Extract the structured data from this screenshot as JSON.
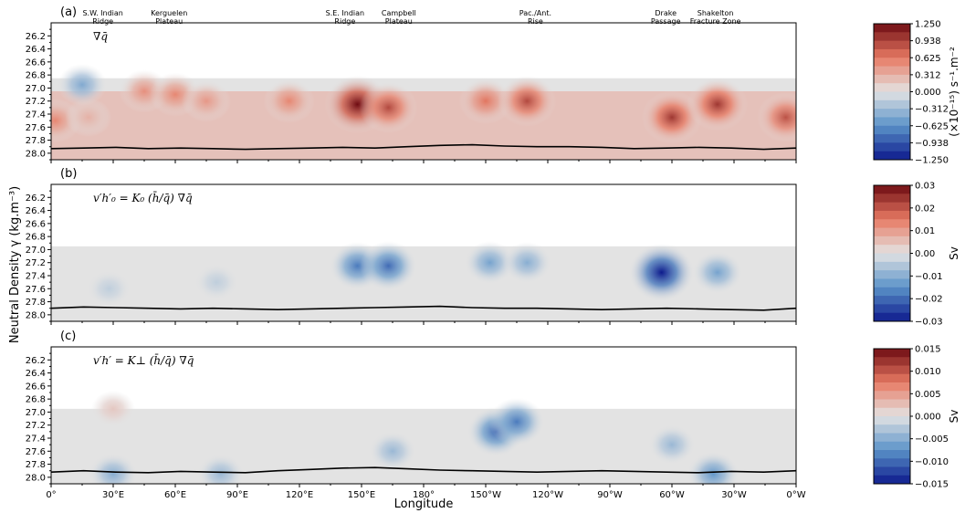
{
  "figure": {
    "xlabel": "Longitude",
    "ylabel": "Neutral Density γ (kg.m⁻³)",
    "colors": {
      "neg_max": "#0d1a8c",
      "neg_mid": "#5b93c9",
      "neutral": "#e3e3e3",
      "pos_mid": "#e77a63",
      "pos_max": "#6e0b12",
      "sea_floor_line": "#000000"
    },
    "ridges": [
      {
        "line1": "S.W. Indian",
        "line2": "Ridge",
        "lon": 25
      },
      {
        "line1": "Kerguelen",
        "line2": "Plateau",
        "lon": 57
      },
      {
        "line1": "S.E. Indian",
        "line2": "Ridge",
        "lon": 142
      },
      {
        "line1": "Campbell",
        "line2": "Plateau",
        "lon": 168
      },
      {
        "line1": "Pac./Ant.",
        "line2": "Rise",
        "lon": 234
      },
      {
        "line1": "Drake",
        "line2": "Passage",
        "lon": 297
      },
      {
        "line1": "Shakelton",
        "line2": "Fracture Zone",
        "lon": 321
      }
    ]
  },
  "chart_data": [
    {
      "type": "heatmap",
      "panel_label": "(a)",
      "formula": "∇q̄",
      "x_ticks": [
        "0°",
        "30°E",
        "60°E",
        "90°E",
        "120°E",
        "150°E",
        "180°",
        "150°W",
        "120°W",
        "90°W",
        "60°W",
        "30°W",
        "0°W"
      ],
      "xlim": [
        0,
        360
      ],
      "ylim": [
        26.0,
        28.1
      ],
      "y_ticks": [
        "26.2",
        "26.4",
        "26.6",
        "26.8",
        "27.0",
        "27.2",
        "27.4",
        "27.6",
        "27.8",
        "28.0"
      ],
      "colorbar": {
        "ticks": [
          "1.250",
          "0.938",
          "0.625",
          "0.312",
          "0.000",
          "−0.312",
          "−0.625",
          "−0.938",
          "−1.250"
        ],
        "range": [
          -1.25,
          1.25
        ],
        "label": "(×10⁻¹⁵) s⁻¹.m⁻²"
      },
      "features": [
        {
          "lon": 2,
          "gamma": 27.5,
          "value": 0.55
        },
        {
          "lon": 18,
          "gamma": 27.45,
          "value": 0.3
        },
        {
          "lon": 45,
          "gamma": 27.05,
          "value": 0.5
        },
        {
          "lon": 60,
          "gamma": 27.1,
          "value": 0.55
        },
        {
          "lon": 75,
          "gamma": 27.2,
          "value": 0.45
        },
        {
          "lon": 115,
          "gamma": 27.2,
          "value": 0.55
        },
        {
          "lon": 148,
          "gamma": 27.25,
          "value": 1.25
        },
        {
          "lon": 163,
          "gamma": 27.3,
          "value": 0.9
        },
        {
          "lon": 210,
          "gamma": 27.2,
          "value": 0.65
        },
        {
          "lon": 230,
          "gamma": 27.2,
          "value": 0.9
        },
        {
          "lon": 300,
          "gamma": 27.45,
          "value": 1.0
        },
        {
          "lon": 322,
          "gamma": 27.25,
          "value": 1.0
        },
        {
          "lon": 355,
          "gamma": 27.45,
          "value": 0.85
        },
        {
          "lon": 15,
          "gamma": 26.95,
          "value": -0.45
        }
      ],
      "seafloor_gamma": [
        27.93,
        27.92,
        27.91,
        27.93,
        27.92,
        27.93,
        27.94,
        27.93,
        27.92,
        27.91,
        27.92,
        27.9,
        27.88,
        27.87,
        27.89,
        27.9,
        27.9,
        27.91,
        27.93,
        27.92,
        27.91,
        27.92,
        27.94,
        27.92
      ]
    },
    {
      "type": "heatmap",
      "panel_label": "(b)",
      "formula": "v′h′₀ = K₀ (h̄/q̄) ∇q̄",
      "x_ticks": [
        "0°",
        "30°E",
        "60°E",
        "90°E",
        "120°E",
        "150°E",
        "180°",
        "150°W",
        "120°W",
        "90°W",
        "60°W",
        "30°W",
        "0°W"
      ],
      "xlim": [
        0,
        360
      ],
      "ylim": [
        26.0,
        28.1
      ],
      "y_ticks": [
        "26.2",
        "26.4",
        "26.6",
        "26.8",
        "27.0",
        "27.2",
        "27.4",
        "27.6",
        "27.8",
        "28.0"
      ],
      "colorbar": {
        "ticks": [
          "0.03",
          "0.02",
          "0.01",
          "0.00",
          "−0.01",
          "−0.02",
          "−0.03"
        ],
        "range": [
          -0.03,
          0.03
        ],
        "label": "Sv"
      },
      "features": [
        {
          "lon": 148,
          "gamma": 27.25,
          "value": -0.018
        },
        {
          "lon": 163,
          "gamma": 27.25,
          "value": -0.02
        },
        {
          "lon": 212,
          "gamma": 27.2,
          "value": -0.012
        },
        {
          "lon": 230,
          "gamma": 27.2,
          "value": -0.01
        },
        {
          "lon": 295,
          "gamma": 27.35,
          "value": -0.03
        },
        {
          "lon": 322,
          "gamma": 27.35,
          "value": -0.012
        },
        {
          "lon": 28,
          "gamma": 27.6,
          "value": -0.004
        },
        {
          "lon": 80,
          "gamma": 27.5,
          "value": -0.004
        }
      ],
      "seafloor_gamma": [
        27.9,
        27.88,
        27.89,
        27.9,
        27.91,
        27.9,
        27.91,
        27.92,
        27.91,
        27.9,
        27.89,
        27.88,
        27.87,
        27.89,
        27.9,
        27.9,
        27.91,
        27.92,
        27.91,
        27.9,
        27.91,
        27.92,
        27.93,
        27.9
      ]
    },
    {
      "type": "heatmap",
      "panel_label": "(c)",
      "formula": "v′h′ = K⊥ (h̄/q̄) ∇q̄",
      "x_ticks": [
        "0°",
        "30°E",
        "60°E",
        "90°E",
        "120°E",
        "150°E",
        "180°",
        "150°W",
        "120°W",
        "90°W",
        "60°W",
        "30°W",
        "0°W"
      ],
      "xlim": [
        0,
        360
      ],
      "ylim": [
        26.0,
        28.1
      ],
      "y_ticks": [
        "26.2",
        "26.4",
        "26.6",
        "26.8",
        "27.0",
        "27.2",
        "27.4",
        "27.6",
        "27.8",
        "28.0"
      ],
      "colorbar": {
        "ticks": [
          "0.015",
          "0.010",
          "0.005",
          "0.000",
          "−0.005",
          "−0.010",
          "−0.015"
        ],
        "range": [
          -0.015,
          0.015
        ],
        "label": "Sv"
      },
      "features": [
        {
          "lon": 215,
          "gamma": 27.3,
          "value": -0.01
        },
        {
          "lon": 225,
          "gamma": 27.15,
          "value": -0.009
        },
        {
          "lon": 300,
          "gamma": 27.5,
          "value": -0.004
        },
        {
          "lon": 320,
          "gamma": 27.95,
          "value": -0.007
        },
        {
          "lon": 30,
          "gamma": 27.95,
          "value": -0.005
        },
        {
          "lon": 82,
          "gamma": 27.95,
          "value": -0.004
        },
        {
          "lon": 165,
          "gamma": 27.6,
          "value": -0.004
        },
        {
          "lon": 30,
          "gamma": 26.95,
          "value": 0.002
        }
      ],
      "seafloor_gamma": [
        27.92,
        27.9,
        27.92,
        27.93,
        27.91,
        27.92,
        27.93,
        27.9,
        27.88,
        27.86,
        27.85,
        27.87,
        27.89,
        27.9,
        27.91,
        27.92,
        27.91,
        27.9,
        27.91,
        27.92,
        27.93,
        27.91,
        27.92,
        27.9
      ]
    }
  ]
}
